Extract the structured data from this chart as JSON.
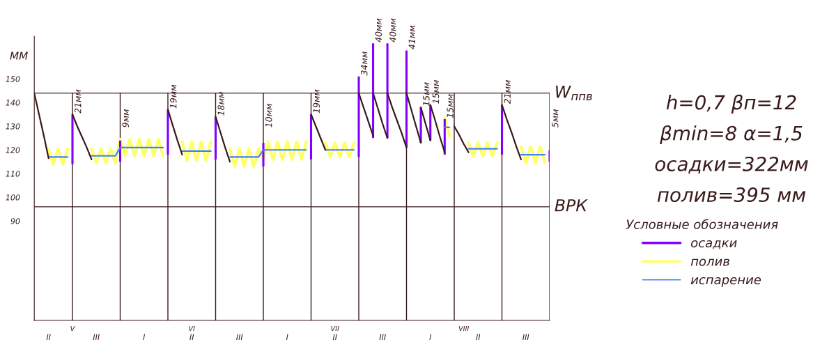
{
  "chart_data": {
    "type": "line",
    "ylabel": "ММ",
    "legend_title": "Условные обозначения",
    "legend": "right",
    "ylim": [
      48,
      168
    ],
    "yticks": [
      90,
      100,
      110,
      120,
      130,
      140,
      150
    ],
    "categories": [
      null,
      null,
      null,
      "II",
      null,
      null,
      null,
      null,
      null,
      null,
      null,
      null,
      null,
      "III",
      null,
      null,
      null,
      null,
      null,
      null,
      null,
      null,
      null,
      "I",
      null,
      null,
      null,
      null,
      null,
      null,
      null,
      null,
      null,
      "II",
      null,
      null,
      null,
      null,
      null,
      null,
      null,
      null,
      null,
      "III",
      null,
      null,
      null,
      null,
      null,
      null,
      null,
      null,
      null,
      "I",
      null,
      null,
      null,
      null,
      null,
      null,
      null,
      null,
      null,
      "II",
      null,
      null,
      null,
      null,
      null,
      null,
      null,
      null,
      null,
      "III",
      null,
      null,
      null,
      null,
      null,
      null,
      null,
      null,
      null,
      "I",
      null,
      null,
      null,
      null,
      null,
      null,
      null,
      null,
      null,
      "II",
      null,
      null,
      null,
      null,
      null,
      null,
      null,
      null,
      null,
      "III",
      null,
      null,
      null,
      null,
      null
    ],
    "ref_lines": [
      {
        "axis": "y",
        "value": 144,
        "label": "W$_{ппв}$"
      },
      {
        "axis": "y",
        "value": 96,
        "label": "ВРК"
      }
    ],
    "series": [
      {
        "type": "line",
        "name": "полив",
        "color": "#ffff66",
        "values": [
          null,
          null,
          null,
          120.5,
          114,
          120.5,
          114,
          120.5,
          null,
          null,
          null,
          null,
          120.5,
          114.5,
          120.5,
          114.5,
          120.5,
          114.5,
          124.5,
          117.5,
          124.5,
          117.5,
          124.5,
          117.5,
          124.5,
          117.5,
          124.5,
          117.5,
          null,
          null,
          null,
          123.5,
          115.5,
          123.5,
          115.5,
          123.5,
          115.5,
          123.5,
          null,
          null,
          null,
          120.5,
          113,
          120.5,
          113,
          120.5,
          113,
          120.5,
          116,
          123.5,
          116,
          123.5,
          116,
          123.5,
          116,
          123.5,
          116,
          123.5,
          null,
          null,
          null,
          123,
          117,
          123,
          117,
          123,
          117,
          123,
          null,
          null,
          null,
          null,
          null,
          null,
          null,
          null,
          null,
          null,
          null,
          null,
          null,
          null,
          null,
          null,
          null,
          null,
          133.5,
          126,
          null,
          null,
          null,
          123,
          117.5,
          123,
          117.5,
          123,
          117.5,
          123,
          null,
          null,
          null,
          null,
          121.5,
          114.5,
          121.5,
          114.5,
          121.5,
          114.5,
          null
        ]
      },
      {
        "type": "line",
        "name": "испарение",
        "color": "#4080ff",
        "values": [
          null,
          null,
          null,
          117,
          117,
          117,
          117,
          117,
          null,
          null,
          null,
          null,
          117.5,
          117.5,
          117.5,
          117.5,
          117.5,
          117.5,
          121,
          121,
          121,
          121,
          121,
          121,
          121,
          121,
          121,
          121,
          null,
          null,
          null,
          119.5,
          119.5,
          119.5,
          119.5,
          119.5,
          119.5,
          119.5,
          null,
          null,
          null,
          117,
          117,
          117,
          117,
          117,
          117,
          117,
          120,
          120,
          120,
          120,
          120,
          120,
          120,
          120,
          120,
          120,
          null,
          null,
          null,
          120,
          120,
          120,
          120,
          120,
          120,
          120,
          null,
          null,
          null,
          null,
          null,
          null,
          null,
          null,
          null,
          null,
          null,
          null,
          null,
          null,
          null,
          null,
          null,
          null,
          129.5,
          129.5,
          null,
          null,
          null,
          120.5,
          120.5,
          120.5,
          120.5,
          120.5,
          120.5,
          120.5,
          null,
          null,
          null,
          null,
          118,
          118,
          118,
          118,
          118,
          118,
          null
        ]
      },
      {
        "color": "#3a1a1a",
        "values": [
          144,
          135,
          126,
          116.5,
          null,
          null,
          null,
          null,
          135,
          130,
          125.5,
          121,
          116,
          null,
          null,
          null,
          null,
          null,
          null,
          null,
          null,
          null,
          null,
          null,
          null,
          null,
          null,
          null,
          137,
          130.5,
          124,
          118,
          null,
          null,
          null,
          null,
          null,
          null,
          134,
          127.5,
          121,
          115,
          null,
          null,
          null,
          null,
          null,
          null,
          null,
          null,
          null,
          null,
          null,
          null,
          null,
          null,
          null,
          null,
          135,
          130,
          125,
          120,
          null,
          null,
          null,
          null,
          null,
          null,
          144,
          138,
          132,
          126,
          null,
          null,
          144,
          138,
          132.5,
          127,
          121,
          null,
          null,
          138,
          131,
          124,
          null,
          null,
          null,
          null,
          null,
          null,
          null,
          null,
          null,
          null,
          null,
          null,
          null,
          null,
          null,
          null,
          null,
          null,
          null,
          null,
          null,
          null,
          null,
          null,
          null
        ]
      },
      {
        "color": "#3a1a1a",
        "values": [
          null,
          null,
          null,
          null,
          null,
          null,
          null,
          null,
          null,
          null,
          null,
          null,
          null,
          null,
          null,
          null,
          null,
          null,
          null,
          null,
          null,
          null,
          null,
          null,
          null,
          null,
          null,
          null,
          null,
          null,
          null,
          null,
          null,
          null,
          null,
          null,
          null,
          null,
          null,
          null,
          null,
          null,
          null,
          null,
          null,
          null,
          null,
          null,
          null,
          null,
          null,
          null,
          null,
          null,
          null,
          null,
          null,
          null,
          null,
          null,
          null,
          null,
          null,
          null,
          null,
          null,
          null,
          null,
          null,
          null,
          null,
          144,
          137.5,
          131,
          125,
          null,
          null,
          null,
          144,
          137,
          130,
          123,
          null,
          139,
          132.5,
          125.5,
          119,
          null,
          130,
          126.5,
          122.5,
          119,
          null,
          null,
          null,
          null,
          null,
          null,
          139,
          133,
          127.5,
          121.5,
          116,
          null,
          null,
          null,
          null,
          null,
          null
        ]
      },
      {
        "type": "bar",
        "name": "осадки",
        "color": "#8000ff",
        "values": [
          null,
          null,
          null,
          null,
          null,
          null,
          null,
          null,
          21,
          null,
          null,
          null,
          null,
          null,
          null,
          null,
          null,
          null,
          9,
          null,
          null,
          null,
          null,
          null,
          null,
          null,
          null,
          null,
          19,
          null,
          null,
          null,
          null,
          null,
          null,
          null,
          null,
          null,
          18,
          null,
          null,
          null,
          null,
          null,
          null,
          null,
          null,
          null,
          10,
          null,
          null,
          null,
          null,
          null,
          null,
          null,
          null,
          null,
          19,
          null,
          null,
          null,
          null,
          null,
          null,
          null,
          null,
          null,
          34,
          null,
          null,
          40,
          null,
          null,
          40,
          null,
          null,
          null,
          41,
          null,
          null,
          15,
          null,
          15,
          null,
          null,
          15,
          null,
          null,
          null,
          null,
          null,
          null,
          null,
          null,
          null,
          null,
          null,
          21,
          null,
          null,
          null,
          null,
          null,
          null,
          null,
          null,
          null,
          5
        ],
        "base": [
          null,
          null,
          null,
          null,
          null,
          null,
          null,
          null,
          114,
          null,
          null,
          null,
          null,
          null,
          null,
          null,
          null,
          null,
          115,
          null,
          null,
          null,
          null,
          null,
          null,
          null,
          null,
          null,
          118,
          null,
          null,
          null,
          null,
          null,
          null,
          null,
          null,
          null,
          116,
          null,
          null,
          null,
          null,
          null,
          null,
          null,
          null,
          null,
          113,
          null,
          null,
          null,
          null,
          null,
          null,
          null,
          null,
          null,
          116,
          null,
          null,
          null,
          null,
          null,
          null,
          null,
          null,
          null,
          117,
          null,
          null,
          125,
          null,
          null,
          125,
          null,
          null,
          null,
          121,
          null,
          null,
          123,
          null,
          124,
          null,
          null,
          118,
          null,
          null,
          null,
          null,
          null,
          null,
          null,
          null,
          null,
          null,
          null,
          118,
          null,
          null,
          null,
          null,
          null,
          null,
          null,
          null,
          null,
          115
        ],
        "value_labels": [
          null,
          null,
          null,
          null,
          null,
          null,
          null,
          null,
          "21мм",
          null,
          null,
          null,
          null,
          null,
          null,
          null,
          null,
          null,
          "9мм",
          null,
          null,
          null,
          null,
          null,
          null,
          null,
          null,
          null,
          "19мм",
          null,
          null,
          null,
          null,
          null,
          null,
          null,
          null,
          null,
          "18мм",
          null,
          null,
          null,
          null,
          null,
          null,
          null,
          null,
          null,
          "10мм",
          null,
          null,
          null,
          null,
          null,
          null,
          null,
          null,
          null,
          "19мм",
          null,
          null,
          null,
          null,
          null,
          null,
          null,
          null,
          null,
          "34мм",
          null,
          null,
          "40мм",
          null,
          null,
          "40мм",
          null,
          null,
          null,
          "41мм",
          null,
          null,
          "15мм",
          null,
          "15мм",
          null,
          null,
          "15мм",
          null,
          null,
          null,
          null,
          null,
          null,
          null,
          null,
          null,
          null,
          null,
          "21мм",
          null,
          null,
          null,
          null,
          null,
          null,
          null,
          null,
          null,
          "5мм"
        ]
      }
    ],
    "annotations": [
      "h=0,7 βп=12",
      "βmin=8 α=1,5",
      "осадки=322мм",
      "полив=395 мм",
      "V",
      "VI",
      "VII",
      "VIII"
    ]
  }
}
